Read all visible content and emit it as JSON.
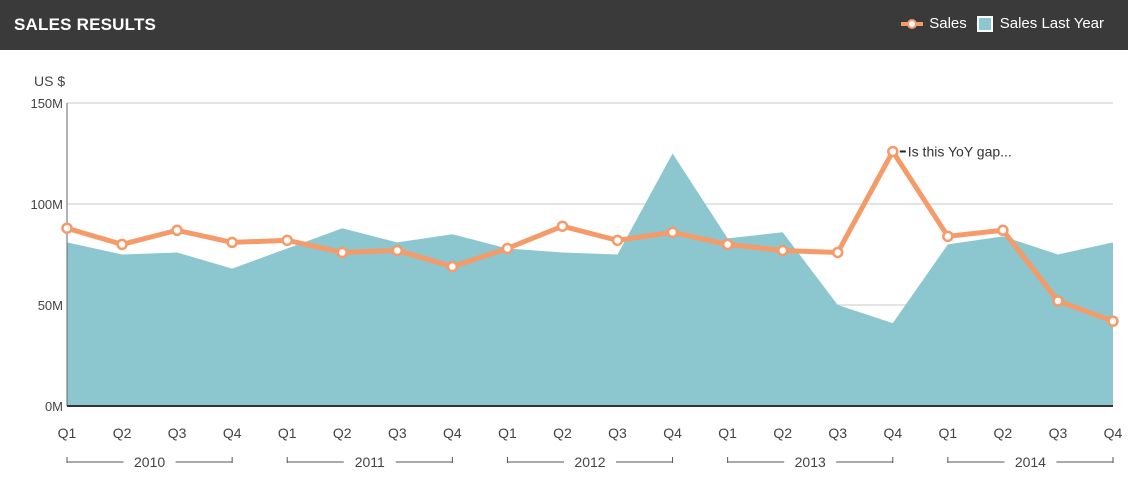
{
  "header": {
    "title": "SALES RESULTS",
    "legend": [
      {
        "label": "Sales",
        "kind": "line"
      },
      {
        "label": "Sales Last Year",
        "kind": "area"
      }
    ]
  },
  "colors": {
    "header_bg": "#3a3a3a",
    "sales": "#f59a69",
    "sales_last_year": "#8cc6cf",
    "grid": "#c8c8c8",
    "text": "#444444"
  },
  "chart_data": {
    "type": "line",
    "ylabel": "US $",
    "ylim": [
      0,
      150
    ],
    "yticks": [
      {
        "value": 0,
        "label": "0M"
      },
      {
        "value": 50,
        "label": "50M"
      },
      {
        "value": 100,
        "label": "100M"
      },
      {
        "value": 150,
        "label": "150M"
      }
    ],
    "categories": [
      "Q1",
      "Q2",
      "Q3",
      "Q4",
      "Q1",
      "Q2",
      "Q3",
      "Q4",
      "Q1",
      "Q2",
      "Q3",
      "Q4",
      "Q1",
      "Q2",
      "Q3",
      "Q4",
      "Q1",
      "Q2",
      "Q3",
      "Q4"
    ],
    "year_groups": [
      "2010",
      "2011",
      "2012",
      "2013",
      "2014"
    ],
    "series": [
      {
        "name": "Sales",
        "type": "line",
        "values": [
          88,
          80,
          87,
          81,
          82,
          76,
          77,
          69,
          78,
          89,
          82,
          86,
          80,
          77,
          76,
          126,
          84,
          87,
          52,
          42
        ]
      },
      {
        "name": "Sales Last Year",
        "type": "area",
        "values": [
          81,
          75,
          76,
          68,
          78,
          88,
          81,
          85,
          78,
          76,
          75,
          125,
          83,
          86,
          50,
          41,
          80,
          84,
          75,
          81
        ]
      }
    ],
    "grid": true,
    "legend_position": "top-right",
    "annotations": [
      {
        "text": "Is this YoY gap...",
        "category_index": 15,
        "value": 126
      }
    ]
  }
}
